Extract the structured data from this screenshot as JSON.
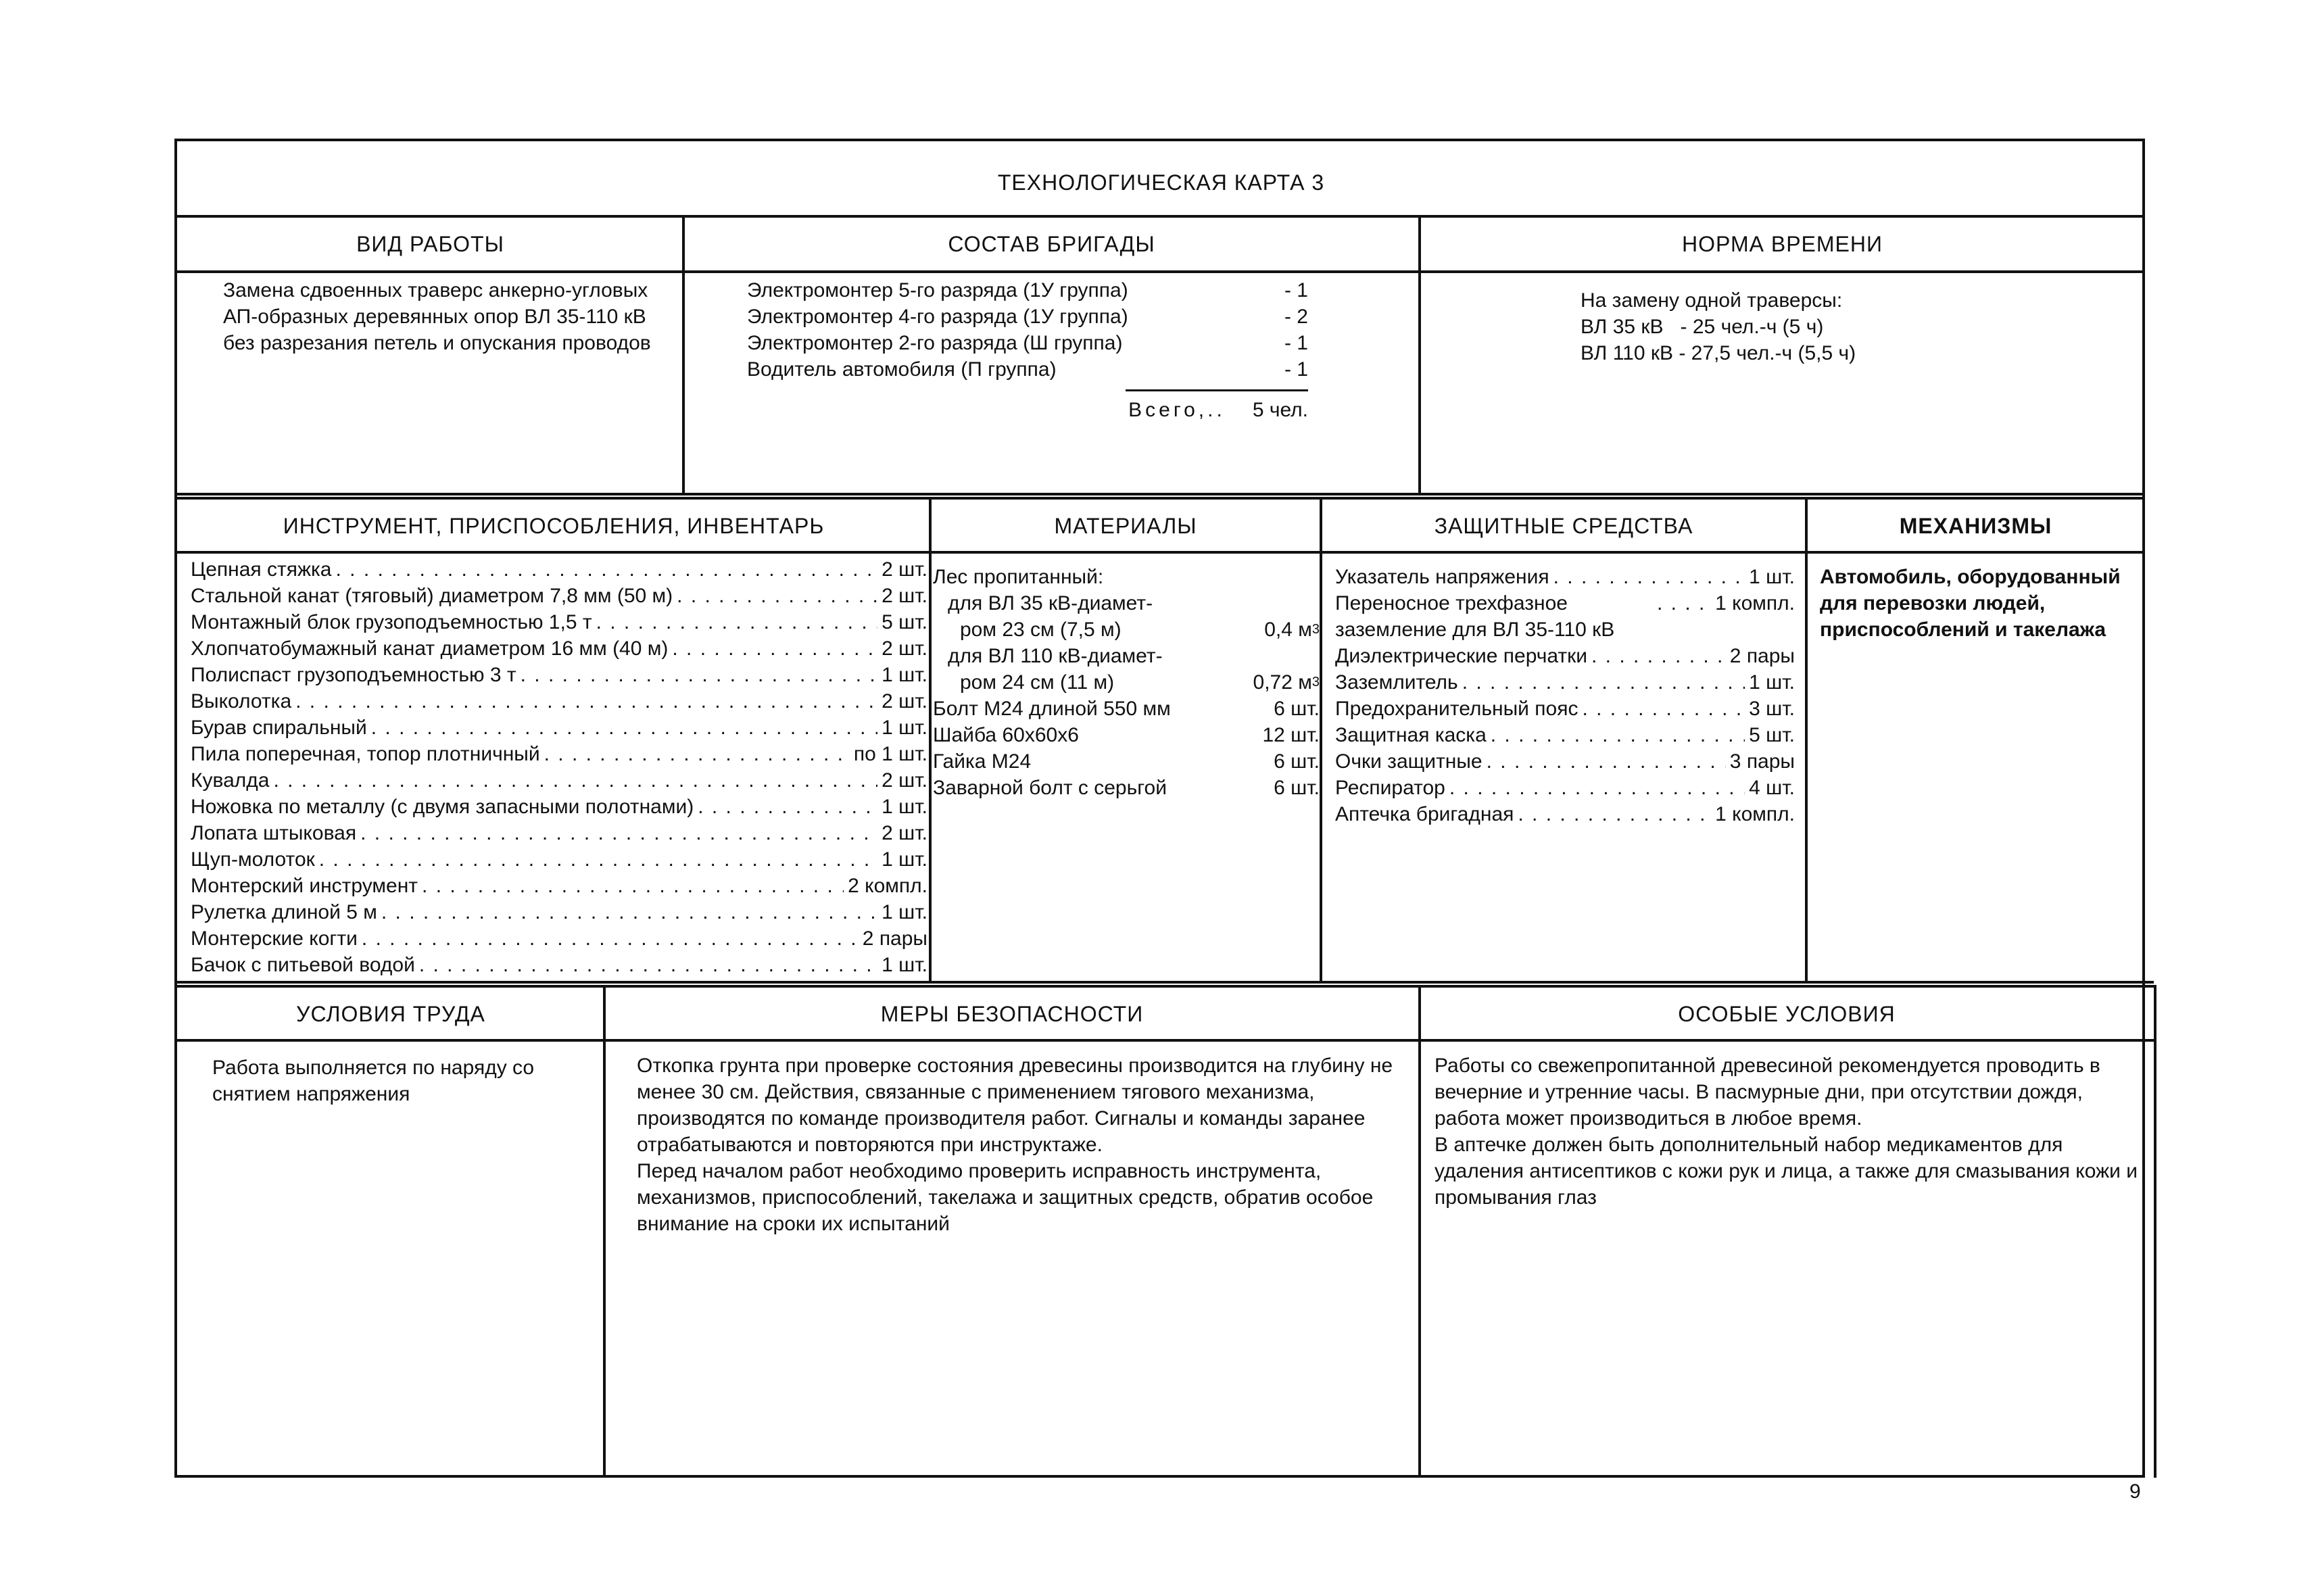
{
  "title": "ТЕХНОЛОГИЧЕСКАЯ КАРТА 3",
  "work_type": {
    "header": "ВИД РАБОТЫ",
    "text": "Замена сдвоенных траверс анкерно-угловых АП-образных деревянных опор ВЛ 35-110 кВ без разрезания петель и опускания проводов"
  },
  "brigade": {
    "header": "СОСТАВ БРИГАДЫ",
    "members": [
      {
        "role": "Электромонтер 5-го разряда (1У группа)",
        "count": "- 1"
      },
      {
        "role": "Электромонтер 4-го разряда (1У группа)",
        "count": "- 2"
      },
      {
        "role": "Электромонтер 2-го разряда (Ш группа)",
        "count": "- 1"
      },
      {
        "role": "Водитель автомобиля (П группа)",
        "count": "- 1"
      }
    ],
    "total_label": "Всего,..",
    "total_value": "5 чел."
  },
  "time_norm": {
    "header": "НОРМА ВРЕМЕНИ",
    "lines": [
      "На замену одной траверсы:",
      "ВЛ 35 кВ   - 25 чел.-ч (5 ч)",
      "ВЛ 110 кВ - 27,5 чел.-ч (5,5 ч)"
    ]
  },
  "tools": {
    "header": "ИНСТРУМЕНТ, ПРИСПОСОБЛЕНИЯ, ИНВЕНТАРЬ",
    "items": [
      {
        "name": "Цепная стяжка",
        "qty": "2 шт."
      },
      {
        "name": "Стальной канат (тяговый) диаметром 7,8 мм (50 м)",
        "qty": "2 шт."
      },
      {
        "name": "Монтажный блок грузоподъемностью 1,5 т",
        "qty": "5 шт."
      },
      {
        "name": "Хлопчатобумажный канат диаметром 16 мм (40 м)",
        "qty": "2 шт."
      },
      {
        "name": "Полиспаст грузоподъемностью 3 т",
        "qty": "1 шт."
      },
      {
        "name": "Выколотка",
        "qty": "2 шт."
      },
      {
        "name": "Бурав спиральный",
        "qty": "1 шт."
      },
      {
        "name": "Пила поперечная, топор плотничный",
        "qty": "по 1 шт."
      },
      {
        "name": "Кувалда",
        "qty": "2 шт."
      },
      {
        "name": "Ножовка по металлу (с двумя запасными полотнами)",
        "qty": "1 шт."
      },
      {
        "name": "Лопата штыковая",
        "qty": "2 шт."
      },
      {
        "name": "Щуп-молоток",
        "qty": "1 шт."
      },
      {
        "name": "Монтерский инструмент",
        "qty": "2 компл."
      },
      {
        "name": "Рулетка длиной 5 м",
        "qty": "1 шт."
      },
      {
        "name": "Монтерские когти",
        "qty": "2 пары"
      },
      {
        "name": "Бачок с питьевой водой",
        "qty": "1 шт."
      }
    ]
  },
  "materials": {
    "header": "МАТЕРИАЛЫ",
    "wood_heading": "Лес пропитанный:",
    "wood": [
      {
        "line1": "для ВЛ 35 кВ-диамет-",
        "line2": "ром 23 см (7,5 м)",
        "qty": "0,4 м",
        "unit_exp": "3"
      },
      {
        "line1": "для ВЛ 110 кВ-диамет-",
        "line2": "ром 24 см (11 м)",
        "qty": "0,72 м",
        "unit_exp": "3"
      }
    ],
    "items": [
      {
        "name": "Болт М24 длиной 550 мм",
        "qty": "6 шт."
      },
      {
        "name": "Шайба 60х60х6",
        "qty": "12 шт."
      },
      {
        "name": "Гайка М24",
        "qty": "6 шт."
      },
      {
        "name": "Заварной болт с серьгой",
        "qty": "6 шт."
      }
    ]
  },
  "protection": {
    "header": "ЗАЩИТНЫЕ СРЕДСТВА",
    "items": [
      {
        "name": "Указатель напряжения",
        "qty": "1 шт."
      },
      {
        "name": "Переносное трехфазное заземление для ВЛ 35-110 кВ",
        "qty": "1 компл."
      },
      {
        "name": "Диэлектрические перчатки",
        "qty": "2 пары"
      },
      {
        "name": "Заземлитель",
        "qty": "1 шт."
      },
      {
        "name": "Предохранительный пояс",
        "qty": "3 шт."
      },
      {
        "name": "Защитная каска",
        "qty": "5 шт."
      },
      {
        "name": "Очки защитные",
        "qty": "3 пары"
      },
      {
        "name": "Респиратор",
        "qty": "4 шт."
      },
      {
        "name": "Аптечка бригадная",
        "qty": "1 компл."
      }
    ]
  },
  "mechanisms": {
    "header": "МЕХАНИЗМЫ",
    "text": "Автомобиль, оборудованный для перевозки людей, приспособлений и такелажа"
  },
  "work_conditions": {
    "header": "УСЛОВИЯ ТРУДА",
    "text": "Работа выполняется по наряду со снятием напряжения"
  },
  "safety": {
    "header": "МЕРЫ БЕЗОПАСНОСТИ",
    "paragraphs": [
      "Откопка грунта при проверке состояния древесины производится на глубину не менее 30 см. Действия, связанные с применением тягового механизма, производятся по команде производителя работ. Сигналы и команды заранее отрабатываются и повторяются при инструктаже.",
      "Перед началом работ необходимо проверить исправность инструмента, механизмов, приспособлений, такелажа и защитных средств, обратив особое внимание на сроки их испытаний"
    ]
  },
  "special": {
    "header": "ОСОБЫЕ УСЛОВИЯ",
    "paragraphs": [
      "Работы со свежепропитанной древесиной рекомендуется проводить в вечерние и утренние часы. В пасмурные дни, при отсутствии дождя, работа может производиться в любое время.",
      "В аптечке должен быть дополнительный набор медикаментов для удаления антисептиков с кожи рук и лица, а также для смазывания кожи и промывания глаз"
    ]
  },
  "page_number": "9"
}
